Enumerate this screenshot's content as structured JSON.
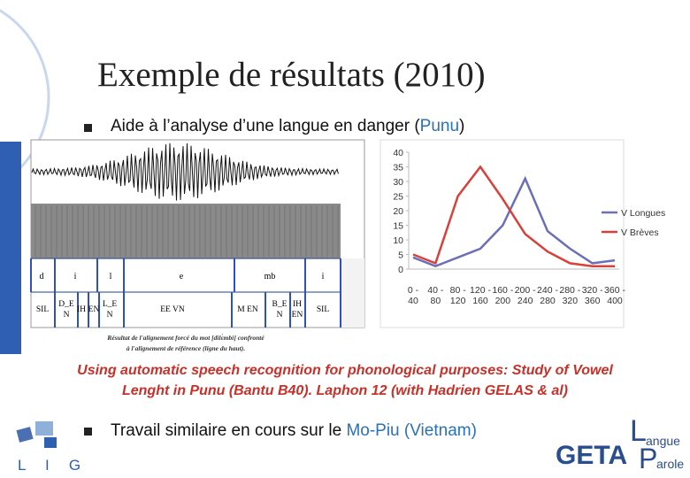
{
  "title": "Exemple de résultats (2010)",
  "bullets": [
    {
      "text": "Aide à l’analyse d’une langue en danger (",
      "highlight": "Punu",
      "after": ")"
    },
    {
      "text": "Travail similaire en cours sur le ",
      "highlight": "Mo-Piu (Vietnam)"
    }
  ],
  "figure": {
    "tier1": [
      "d",
      "i",
      "l",
      "e",
      "mb",
      "i"
    ],
    "tier2": [
      "SIL",
      "D_E",
      "N",
      "IH",
      "EN",
      "L_E",
      "N",
      "EE VN",
      "M EN",
      "B_E",
      "N",
      "IH",
      "EN",
      "SIL"
    ],
    "caption": [
      "Résultat de l'alignement forcé du mot [dìlɛ̀mbì] confronté",
      "à l'alignement de référence (ligne du haut)."
    ]
  },
  "citation": [
    "Using automatic speech recognition for phonological purposes: Study of Vowel",
    "Lenght in Punu (Bantu B40). Laphon 12 (with Hadrien GELAS & al)"
  ],
  "logos": {
    "lig": [
      "L",
      "I",
      "G"
    ],
    "getalp": [
      "GETA",
      "L",
      "angue",
      "P",
      "arole"
    ]
  },
  "chart_data": {
    "type": "line",
    "categories": [
      "0 - 40",
      "40 - 80",
      "80 - 120",
      "120 - 160",
      "160 - 200",
      "200 - 240",
      "240 - 280",
      "280 - 320",
      "320 - 360",
      "360 - 400"
    ],
    "series": [
      {
        "name": "V Longues",
        "color": "#6b70b6",
        "values": [
          4,
          1,
          4,
          7,
          15,
          31,
          13,
          7,
          2,
          3
        ]
      },
      {
        "name": "V Brèves",
        "color": "#d9403a",
        "values": [
          5,
          2,
          25,
          35,
          24,
          12,
          6,
          2,
          1,
          1
        ]
      }
    ],
    "ylim": [
      0,
      40
    ],
    "yticks": [
      0,
      5,
      10,
      15,
      20,
      25,
      30,
      35,
      40
    ],
    "legend": "right"
  }
}
